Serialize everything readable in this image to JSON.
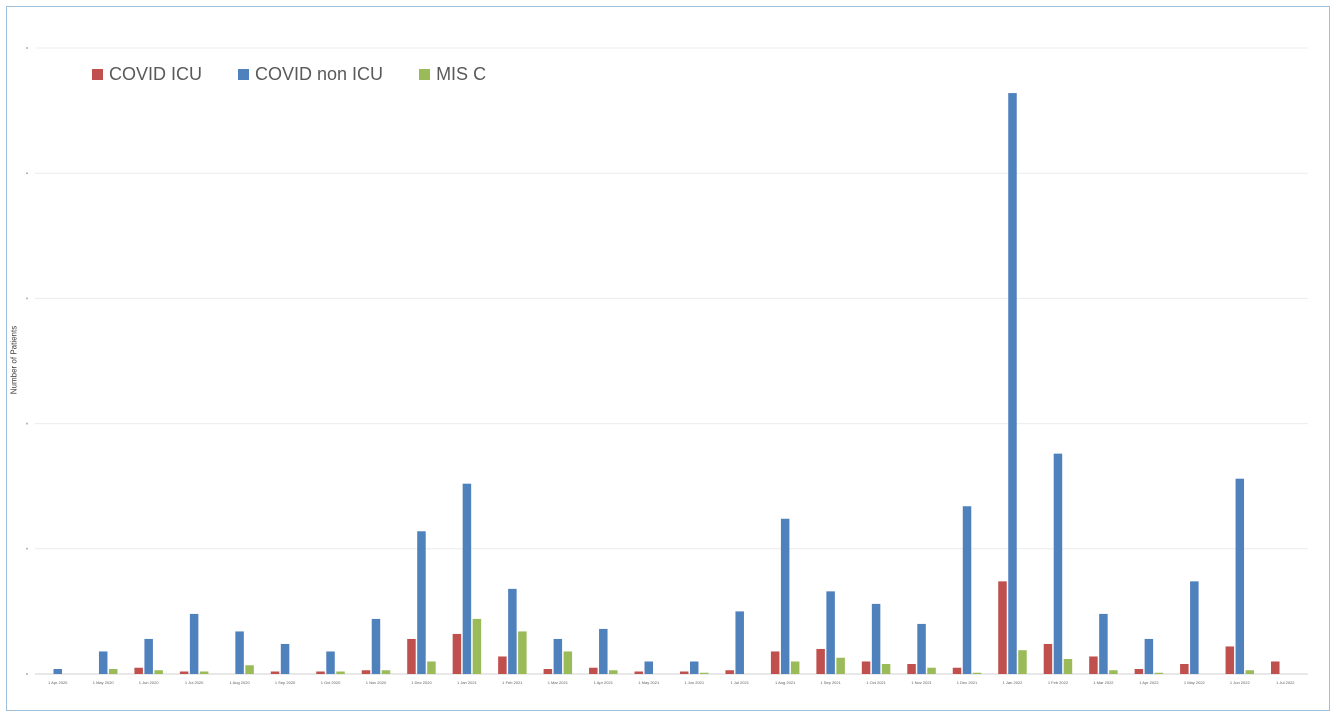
{
  "chart_data": {
    "type": "bar",
    "title": "",
    "xlabel": "",
    "ylabel": "Number of Patients",
    "grid": true,
    "legend_position": "top-left",
    "categories": [
      "1 Apr 2020",
      "1 May 2020",
      "1 Jun 2020",
      "1 Jul 2020",
      "1 Aug 2020",
      "1 Sep 2020",
      "1 Oct 2020",
      "1 Nov 2020",
      "1 Dec 2020",
      "1 Jan 2021",
      "1 Feb 2021",
      "1 Mar 2021",
      "1 Apr 2021",
      "1 May 2021",
      "1 Jun 2021",
      "1 Jul 2021",
      "1 Aug 2021",
      "1 Sep 2021",
      "1 Oct 2021",
      "1 Nov 2021",
      "1 Dec 2021",
      "1 Jan 2022",
      "1 Feb 2022",
      "1 Mar 2022",
      "1 Apr 2022",
      "1 May 2022",
      "1 Jun 2022",
      "1 Jul 2022"
    ],
    "ylim": [
      0,
      50
    ],
    "series": [
      {
        "name": "COVID ICU",
        "color": "#c0504d",
        "values": [
          0,
          0,
          0.5,
          0.2,
          0,
          0.2,
          0.2,
          0.3,
          2.8,
          3.2,
          1.4,
          0.4,
          0.5,
          0.2,
          0.2,
          0.3,
          1.8,
          2,
          1,
          0.8,
          0.5,
          7.4,
          2.4,
          1.4,
          0.4,
          0.8,
          2.2,
          1
        ]
      },
      {
        "name": "COVID non ICU",
        "color": "#4f81bd",
        "values": [
          0.4,
          1.8,
          2.8,
          4.8,
          3.4,
          2.4,
          1.8,
          4.4,
          11.4,
          15.2,
          6.8,
          2.8,
          3.6,
          1,
          1,
          5,
          12.4,
          6.6,
          5.6,
          4,
          13.4,
          46.4,
          17.6,
          4.8,
          2.8,
          7.4,
          15.6,
          0
        ]
      },
      {
        "name": "MIS C",
        "color": "#9bbb59",
        "values": [
          0,
          0.4,
          0.3,
          0.2,
          0.7,
          0,
          0.2,
          0.3,
          1,
          4.4,
          3.4,
          1.8,
          0.3,
          0,
          0.1,
          0,
          1,
          1.3,
          0.8,
          0.5,
          0.1,
          1.9,
          1.2,
          0.3,
          0.1,
          0,
          0.3,
          0
        ]
      }
    ]
  }
}
